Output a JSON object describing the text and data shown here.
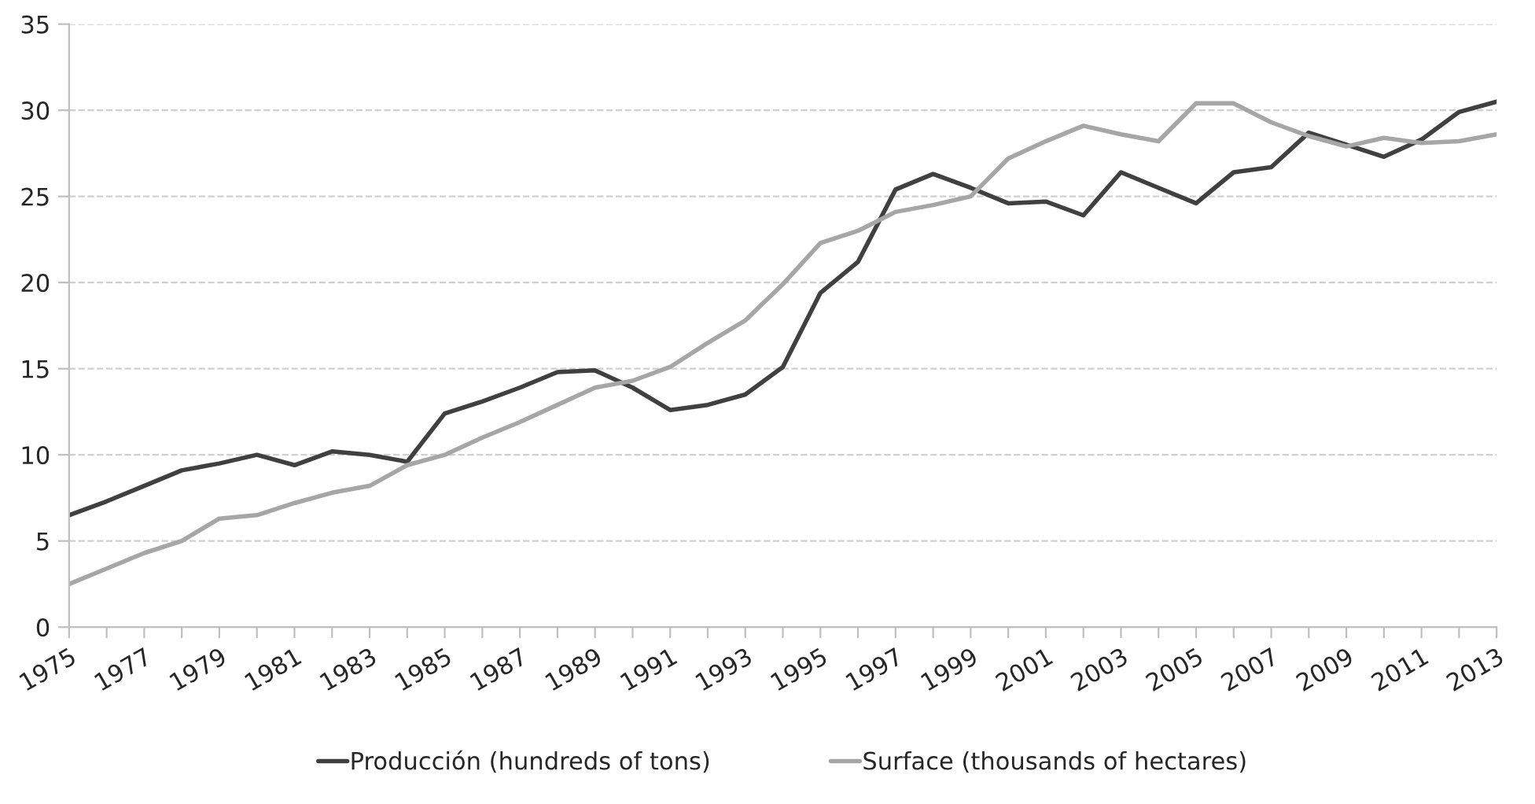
{
  "chart_data": {
    "type": "line",
    "x": [
      1975,
      1976,
      1977,
      1978,
      1979,
      1980,
      1981,
      1982,
      1983,
      1984,
      1985,
      1986,
      1987,
      1988,
      1989,
      1990,
      1991,
      1992,
      1993,
      1994,
      1995,
      1996,
      1997,
      1998,
      1999,
      2000,
      2001,
      2002,
      2003,
      2004,
      2005,
      2006,
      2007,
      2008,
      2009,
      2010,
      2011,
      2012,
      2013
    ],
    "series": [
      {
        "name": "Producción (hundreds of tons)",
        "color": "#404040",
        "values": [
          6.5,
          7.3,
          8.2,
          9.1,
          9.5,
          10.0,
          9.4,
          10.2,
          10.0,
          9.6,
          12.4,
          13.1,
          13.9,
          14.8,
          14.9,
          13.9,
          12.6,
          12.9,
          13.5,
          15.1,
          19.4,
          21.2,
          25.4,
          26.3,
          25.5,
          24.6,
          24.7,
          23.9,
          26.4,
          25.5,
          24.6,
          26.4,
          26.7,
          28.7,
          28.0,
          27.3,
          28.3,
          29.9,
          30.5
        ]
      },
      {
        "name": "Surface (thousands of hectares)",
        "color": "#a6a6a6",
        "values": [
          2.5,
          3.4,
          4.3,
          5.0,
          6.3,
          6.5,
          7.2,
          7.8,
          8.2,
          9.4,
          10.0,
          11.0,
          11.9,
          12.9,
          13.9,
          14.3,
          15.1,
          16.5,
          17.8,
          19.9,
          22.3,
          23.0,
          24.1,
          24.5,
          25.0,
          27.2,
          28.2,
          29.1,
          28.6,
          28.2,
          30.4,
          30.4,
          29.3,
          28.5,
          27.9,
          28.4,
          28.1,
          28.2,
          28.6
        ]
      }
    ],
    "xlim": [
      1975,
      2013
    ],
    "xticks": [
      1975,
      {
        "value": 1976,
        "label": null
      },
      1977,
      {
        "value": 1978,
        "label": null
      },
      1979,
      {
        "value": 1980,
        "label": null
      },
      1981,
      {
        "value": 1982,
        "label": null
      },
      1983,
      {
        "value": 1984,
        "label": null
      },
      1985,
      {
        "value": 1986,
        "label": null
      },
      1987,
      {
        "value": 1988,
        "label": null
      },
      1989,
      {
        "value": 1990,
        "label": null
      },
      1991,
      {
        "value": 1992,
        "label": null
      },
      1993,
      {
        "value": 1994,
        "label": null
      },
      1995,
      {
        "value": 1996,
        "label": null
      },
      1997,
      {
        "value": 1998,
        "label": null
      },
      1999,
      {
        "value": 2000,
        "label": null
      },
      2001,
      {
        "value": 2002,
        "label": null
      },
      2003,
      {
        "value": 2004,
        "label": null
      },
      2005,
      {
        "value": 2006,
        "label": null
      },
      2007,
      {
        "value": 2008,
        "label": null
      },
      2009,
      {
        "value": 2010,
        "label": null
      },
      2011,
      {
        "value": 2012,
        "label": null
      },
      2013
    ],
    "ylim": [
      0,
      35
    ],
    "yticks": [
      0,
      5,
      10,
      15,
      20,
      25,
      30,
      35
    ],
    "grid": "y",
    "legend": "bottom",
    "marker": "none",
    "line_style": "solid"
  }
}
